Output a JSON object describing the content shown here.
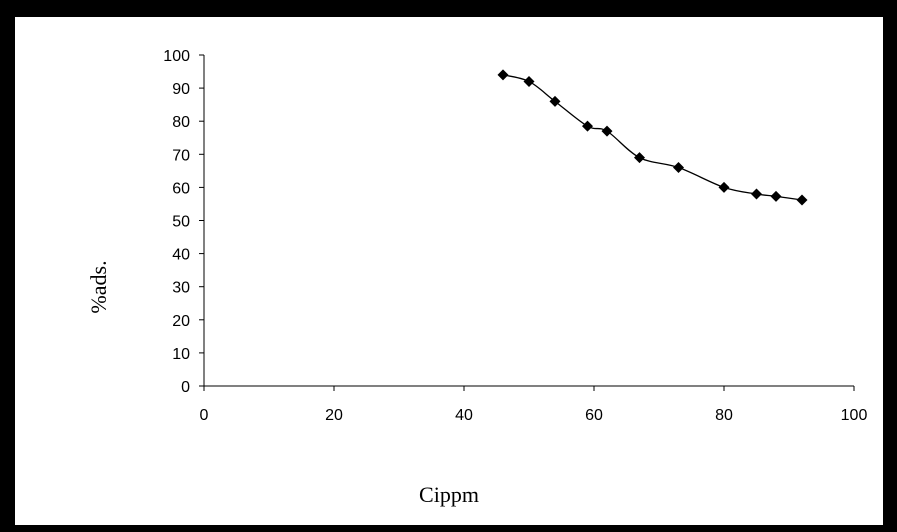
{
  "chart_data": {
    "type": "line",
    "title": "",
    "xlabel": "Cippm",
    "ylabel": "%ads.",
    "xlim": [
      0,
      100
    ],
    "ylim": [
      0,
      100
    ],
    "xticks": [
      "0",
      "20",
      "40",
      "60",
      "80",
      "100"
    ],
    "yticks": [
      "0",
      "10",
      "20",
      "30",
      "40",
      "50",
      "60",
      "70",
      "80",
      "90",
      "100"
    ],
    "grid": false,
    "legend": "none",
    "marker": "diamond",
    "line_color": "#000000",
    "series": [
      {
        "x": [
          46,
          50,
          54,
          59,
          62,
          67,
          73,
          80,
          85,
          88,
          92
        ],
        "y": [
          94,
          92,
          86,
          78.5,
          77,
          69,
          66,
          60,
          58,
          57.3,
          56.2
        ]
      }
    ]
  }
}
